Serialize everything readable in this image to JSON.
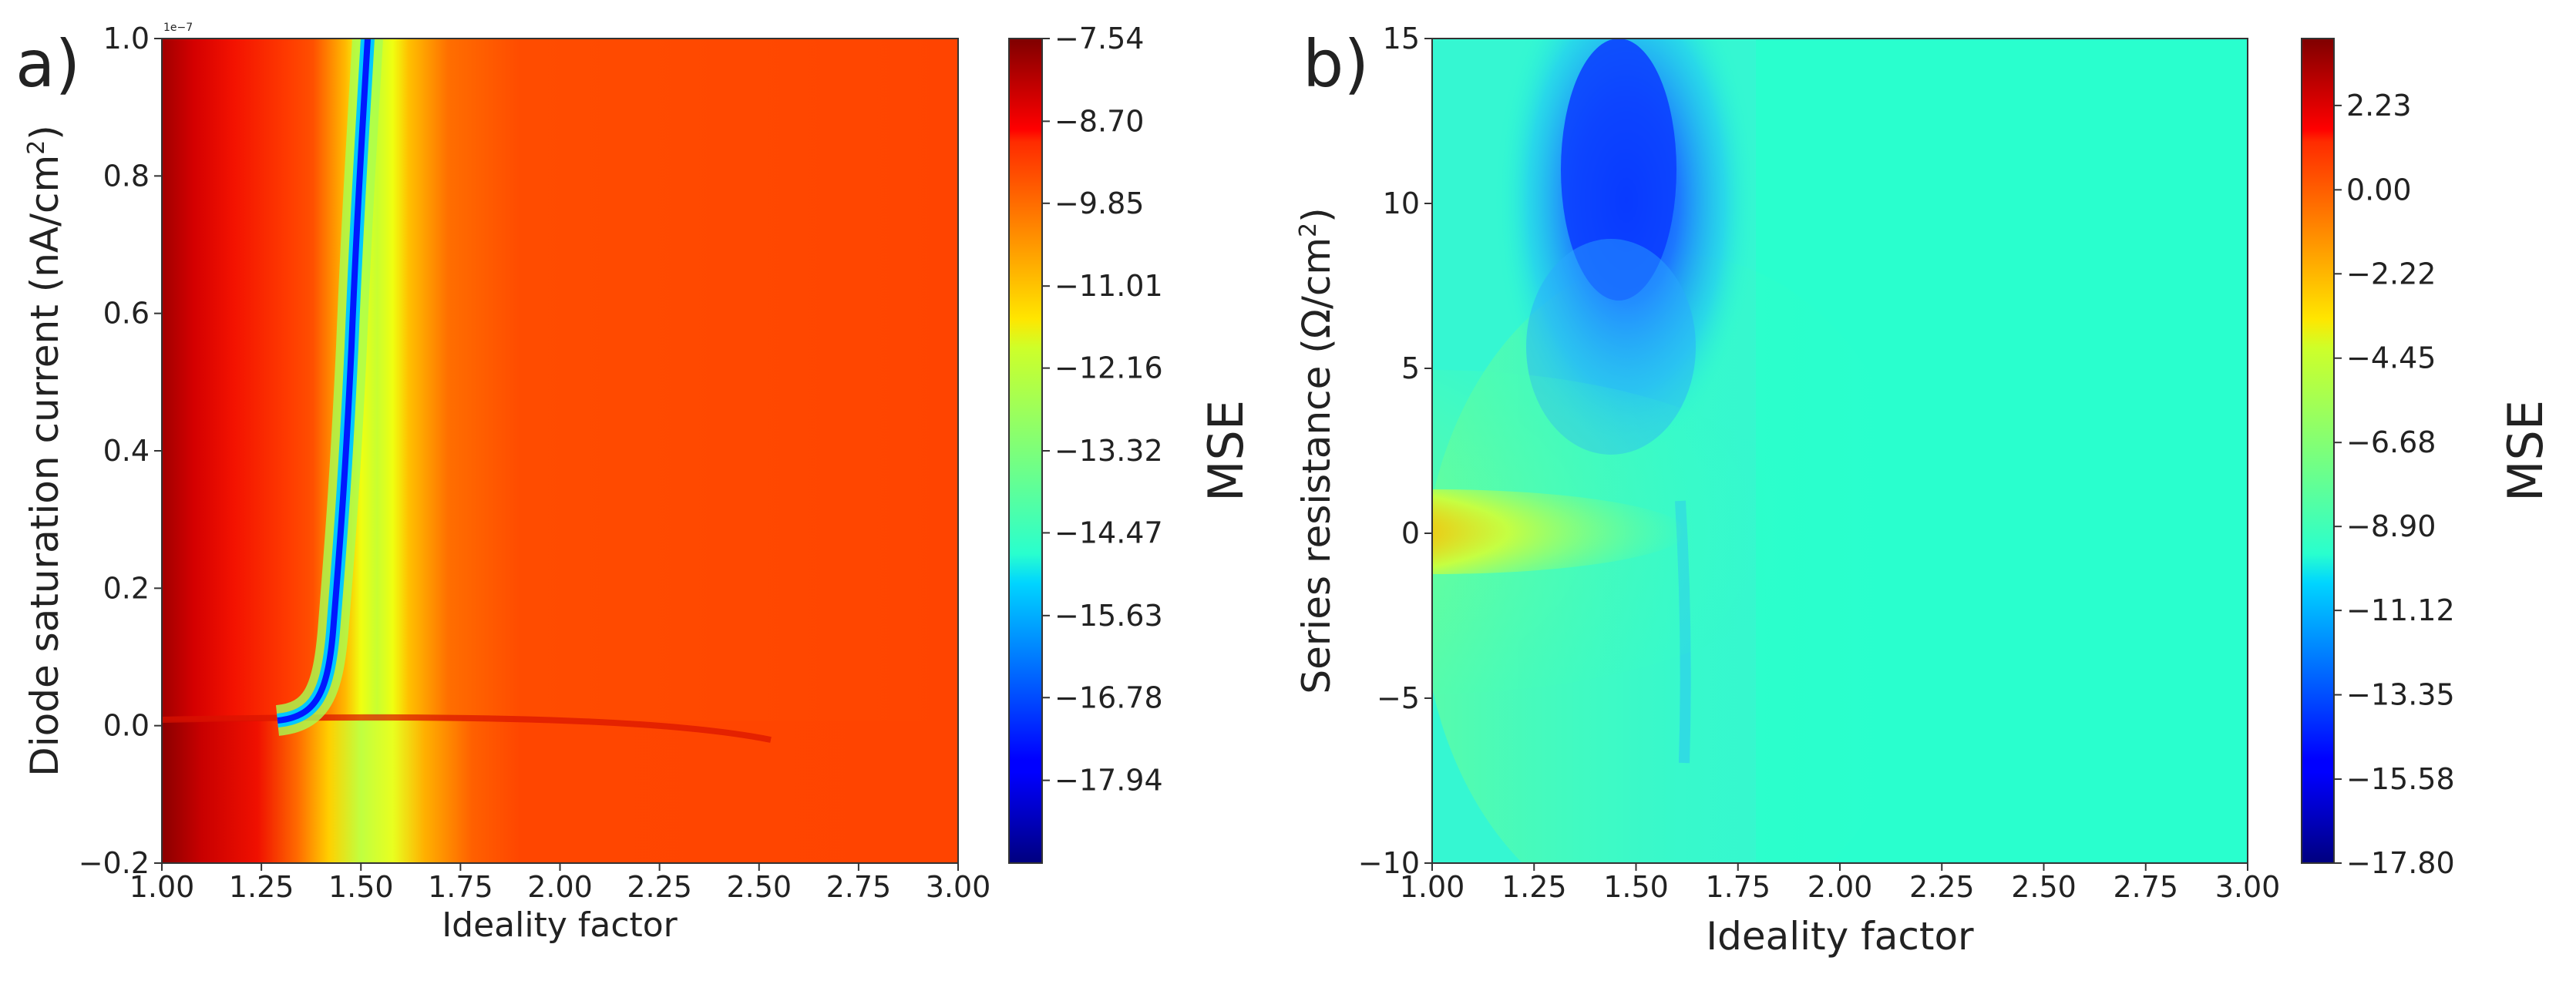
{
  "chart_data": [
    {
      "type": "heatmap",
      "panel_label": "a)",
      "xlabel": "Ideality factor",
      "ylabel": "Diode saturation current (nA/cm",
      "ylabel_sup": "2",
      "ylabel_close": ")",
      "xlim": [
        1.0,
        3.0
      ],
      "ylim": [
        -0.2,
        1.0
      ],
      "y_offset_text": "1e−7",
      "x_ticks": [
        "1.00",
        "1.25",
        "1.50",
        "1.75",
        "2.00",
        "2.25",
        "2.50",
        "2.75",
        "3.00"
      ],
      "x_tick_values": [
        1.0,
        1.25,
        1.5,
        1.75,
        2.0,
        2.25,
        2.5,
        2.75,
        3.0
      ],
      "y_ticks": [
        "−0.2",
        "0.0",
        "0.2",
        "0.4",
        "0.6",
        "0.8",
        "1.0"
      ],
      "y_tick_values": [
        -0.2,
        0.0,
        0.2,
        0.4,
        0.6,
        0.8,
        1.0
      ],
      "colorbar": {
        "label": "MSE",
        "colormap": "jet",
        "range": [
          -19.1,
          -7.54
        ],
        "ticks": [
          "−7.54",
          "−8.70",
          "−9.85",
          "−11.01",
          "−12.16",
          "−13.32",
          "−14.47",
          "−15.63",
          "−16.78",
          "−17.94"
        ],
        "tick_values": [
          -7.54,
          -8.7,
          -9.85,
          -11.01,
          -12.16,
          -13.32,
          -14.47,
          -15.63,
          -16.78,
          -17.94
        ]
      }
    },
    {
      "type": "heatmap",
      "panel_label": "b)",
      "xlabel": "Ideality factor",
      "ylabel": "Series resistance (Ω/cm",
      "ylabel_sup": "2",
      "ylabel_close": ")",
      "xlim": [
        1.0,
        3.0
      ],
      "ylim": [
        -10,
        15
      ],
      "x_ticks": [
        "1.00",
        "1.25",
        "1.50",
        "1.75",
        "2.00",
        "2.25",
        "2.50",
        "2.75",
        "3.00"
      ],
      "x_tick_values": [
        1.0,
        1.25,
        1.5,
        1.75,
        2.0,
        2.25,
        2.5,
        2.75,
        3.0
      ],
      "y_ticks": [
        "−10",
        "−5",
        "0",
        "5",
        "10",
        "15"
      ],
      "y_tick_values": [
        -10,
        -5,
        0,
        5,
        10,
        15
      ],
      "colorbar": {
        "label": "MSE",
        "colormap": "jet",
        "range": [
          -17.8,
          4.0
        ],
        "ticks": [
          "2.23",
          "0.00",
          "−2.22",
          "−4.45",
          "−6.68",
          "−8.90",
          "−11.12",
          "−13.35",
          "−15.58",
          "−17.80"
        ],
        "tick_values": [
          2.23,
          0.0,
          -2.22,
          -4.45,
          -6.68,
          -8.9,
          -11.12,
          -13.35,
          -15.58,
          -17.8
        ]
      }
    }
  ]
}
